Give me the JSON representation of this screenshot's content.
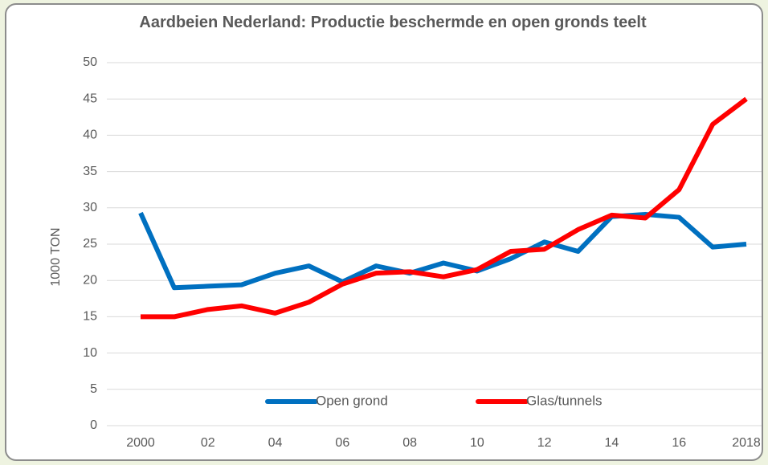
{
  "chart_data": {
    "type": "line",
    "title": "Aardbeien Nederland: Productie beschermde en open gronds teelt",
    "y_label": "1000 TON",
    "categories": [
      "2000",
      null,
      "02",
      null,
      "04",
      null,
      "06",
      null,
      "08",
      null,
      "10",
      null,
      "12",
      null,
      "14",
      null,
      "16",
      null,
      "2018"
    ],
    "series": [
      {
        "name": "Open grond",
        "color": "#0070c0",
        "values": [
          29.3,
          19,
          19.2,
          19.4,
          21,
          22,
          19.8,
          22,
          21,
          22.4,
          21.3,
          23,
          25.3,
          24,
          28.8,
          29.1,
          28.7,
          24.6,
          25
        ]
      },
      {
        "name": "Glas/tunnels",
        "color": "#ff0000",
        "values": [
          15,
          15,
          16,
          16.5,
          15.5,
          17,
          19.5,
          21,
          21.2,
          20.5,
          21.5,
          24,
          24.3,
          27,
          29,
          28.6,
          32.5,
          41.5,
          45
        ]
      }
    ],
    "ylim": [
      0,
      50
    ],
    "yticks": [
      0,
      5,
      10,
      15,
      20,
      25,
      30,
      35,
      40,
      45,
      50
    ],
    "grid": true,
    "legend": "bottom"
  }
}
